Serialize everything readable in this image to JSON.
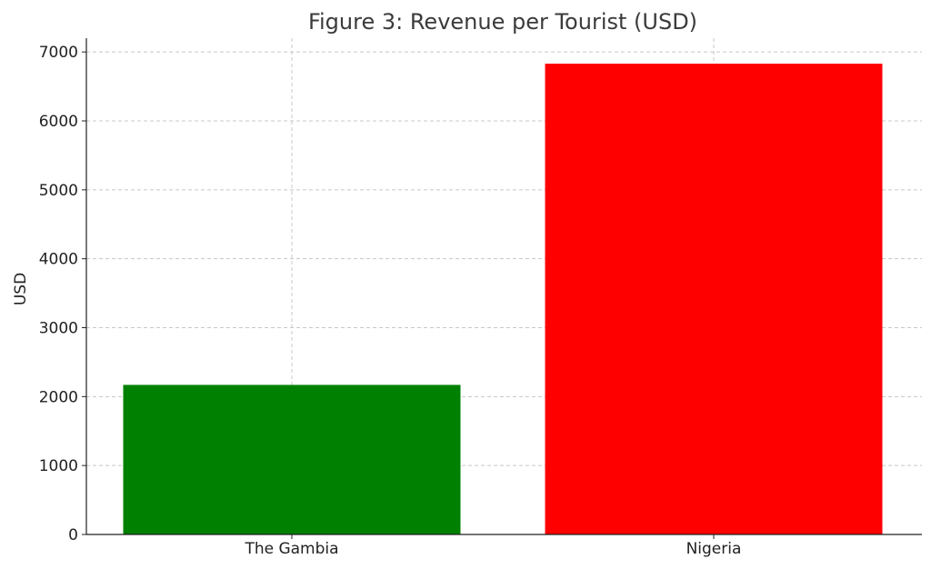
{
  "chart_data": {
    "type": "bar",
    "title": "Figure 3: Revenue per Tourist (USD)",
    "xlabel": "",
    "ylabel": "USD",
    "categories": [
      "The Gambia",
      "Nigeria"
    ],
    "values": [
      2170,
      6830
    ],
    "colors": [
      "#008000",
      "#ff0000"
    ],
    "ylim": [
      0,
      7200
    ],
    "yticks": [
      0,
      1000,
      2000,
      3000,
      4000,
      5000,
      6000,
      7000
    ],
    "ytick_labels": [
      "0",
      "1000",
      "2000",
      "3000",
      "4000",
      "5000",
      "6000",
      "7000"
    ],
    "grid": true,
    "legend": "none"
  }
}
